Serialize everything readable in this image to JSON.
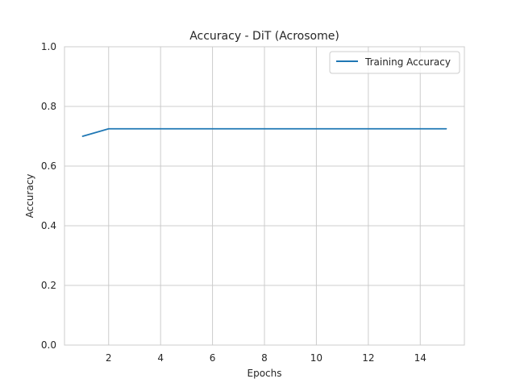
{
  "chart_data": {
    "type": "line",
    "title": "Accuracy - DiT (Acrosome)",
    "xlabel": "Epochs",
    "ylabel": "Accuracy",
    "xlim": [
      0.3,
      15.7
    ],
    "ylim": [
      0.0,
      1.0
    ],
    "xticks": [
      2,
      4,
      6,
      8,
      10,
      12,
      14
    ],
    "yticks": [
      0.0,
      0.2,
      0.4,
      0.6,
      0.8,
      1.0
    ],
    "xtick_labels": [
      "2",
      "4",
      "6",
      "8",
      "10",
      "12",
      "14"
    ],
    "ytick_labels": [
      "0.0",
      "0.2",
      "0.4",
      "0.6",
      "0.8",
      "1.0"
    ],
    "grid": true,
    "legend_position": "top-right",
    "series": [
      {
        "name": "Training Accuracy",
        "color": "#1f77b4",
        "x": [
          1,
          2,
          3,
          4,
          5,
          6,
          7,
          8,
          9,
          10,
          11,
          12,
          13,
          14,
          15
        ],
        "y": [
          0.7,
          0.725,
          0.725,
          0.725,
          0.725,
          0.725,
          0.725,
          0.725,
          0.725,
          0.725,
          0.725,
          0.725,
          0.725,
          0.725,
          0.725
        ]
      }
    ]
  }
}
